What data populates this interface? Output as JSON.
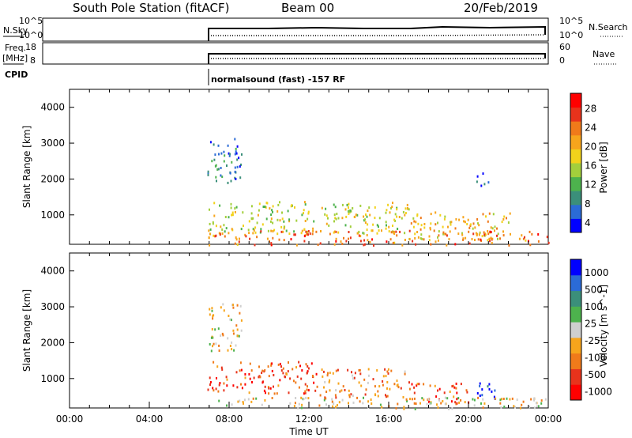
{
  "header": {
    "station": "South Pole Station (fitACF)",
    "beam": "Beam 00",
    "date": "20/Feb/2019"
  },
  "summary": {
    "nsky_label": "N.Sky",
    "nsearch_label": "N.Search",
    "freq_label": "Freq.",
    "freq_unit": "[MHz]",
    "nave_label": "Nave",
    "cpid_label": "CPID",
    "cpid_text": "normalsound (fast) -157 RF",
    "nsky_ticks": [
      "10^5",
      "10^0"
    ],
    "nsearch_ticks": [
      "10^5",
      "10^0"
    ],
    "freq_ticks": [
      "18",
      "8"
    ],
    "nave_ticks": [
      "60",
      "0"
    ]
  },
  "chart_data": [
    {
      "type": "heatmap",
      "title": "",
      "xlabel": "",
      "ylabel": "Slant Range [km]",
      "colorbar_label": "Power [dB]",
      "xlim": [
        0,
        24
      ],
      "ylim": [
        180,
        4500
      ],
      "yticks": [
        "4000",
        "3000",
        "2000",
        "1000"
      ],
      "colorbar_ticks": [
        "28",
        "24",
        "20",
        "16",
        "12",
        "8",
        "4"
      ],
      "colors": [
        "#0000ff",
        "#2b6bd6",
        "#3b8f7a",
        "#4db24d",
        "#a3cf3c",
        "#f2d21b",
        "#f7a51c",
        "#f07a1a",
        "#e8331c",
        "#ff0000"
      ],
      "regions": [
        {
          "t": [
            6.9,
            8.6
          ],
          "r": [
            1800,
            3150
          ],
          "level": 0.2
        },
        {
          "t": [
            6.9,
            17.0
          ],
          "r": [
            500,
            1400
          ],
          "level": 0.5
        },
        {
          "t": [
            17.0,
            22.2
          ],
          "r": [
            350,
            1100
          ],
          "level": 0.6
        },
        {
          "t": [
            6.9,
            24.0
          ],
          "r": [
            180,
            600
          ],
          "level": 0.75
        },
        {
          "t": [
            20.3,
            21.0
          ],
          "r": [
            1800,
            2200
          ],
          "level": 0.15
        }
      ]
    },
    {
      "type": "heatmap",
      "title": "",
      "xlabel": "Time UT",
      "ylabel": "Slant Range [km]",
      "colorbar_label": "Velocity [m s^-1]",
      "xlim": [
        0,
        24
      ],
      "ylim": [
        180,
        4500
      ],
      "yticks": [
        "4000",
        "3000",
        "2000",
        "1000"
      ],
      "xticks": [
        "00:00",
        "04:00",
        "08:00",
        "12:00",
        "16:00",
        "20:00",
        "00:00"
      ],
      "colorbar_ticks": [
        "1000",
        "500",
        "100",
        "25",
        "-25",
        "-100",
        "-500",
        "-1000"
      ],
      "colors": [
        "#ff0000",
        "#e8331c",
        "#f07a1a",
        "#f7a51c",
        "#cfcfcf",
        "#4db24d",
        "#3b8f7a",
        "#2b6bd6",
        "#0000ff"
      ],
      "regions": [
        {
          "t": [
            6.9,
            8.6
          ],
          "r": [
            1800,
            3150
          ],
          "level": 0.45
        },
        {
          "t": [
            6.9,
            12.5
          ],
          "r": [
            600,
            1500
          ],
          "level": 0.2
        },
        {
          "t": [
            12.5,
            17.0
          ],
          "r": [
            500,
            1300
          ],
          "level": 0.3
        },
        {
          "t": [
            17.0,
            20.0
          ],
          "r": [
            300,
            900
          ],
          "level": 0.2
        },
        {
          "t": [
            20.3,
            21.3
          ],
          "r": [
            400,
            1000
          ],
          "level": 0.9
        },
        {
          "t": [
            6.9,
            24.0
          ],
          "r": [
            180,
            500
          ],
          "level": 0.45
        }
      ]
    }
  ]
}
